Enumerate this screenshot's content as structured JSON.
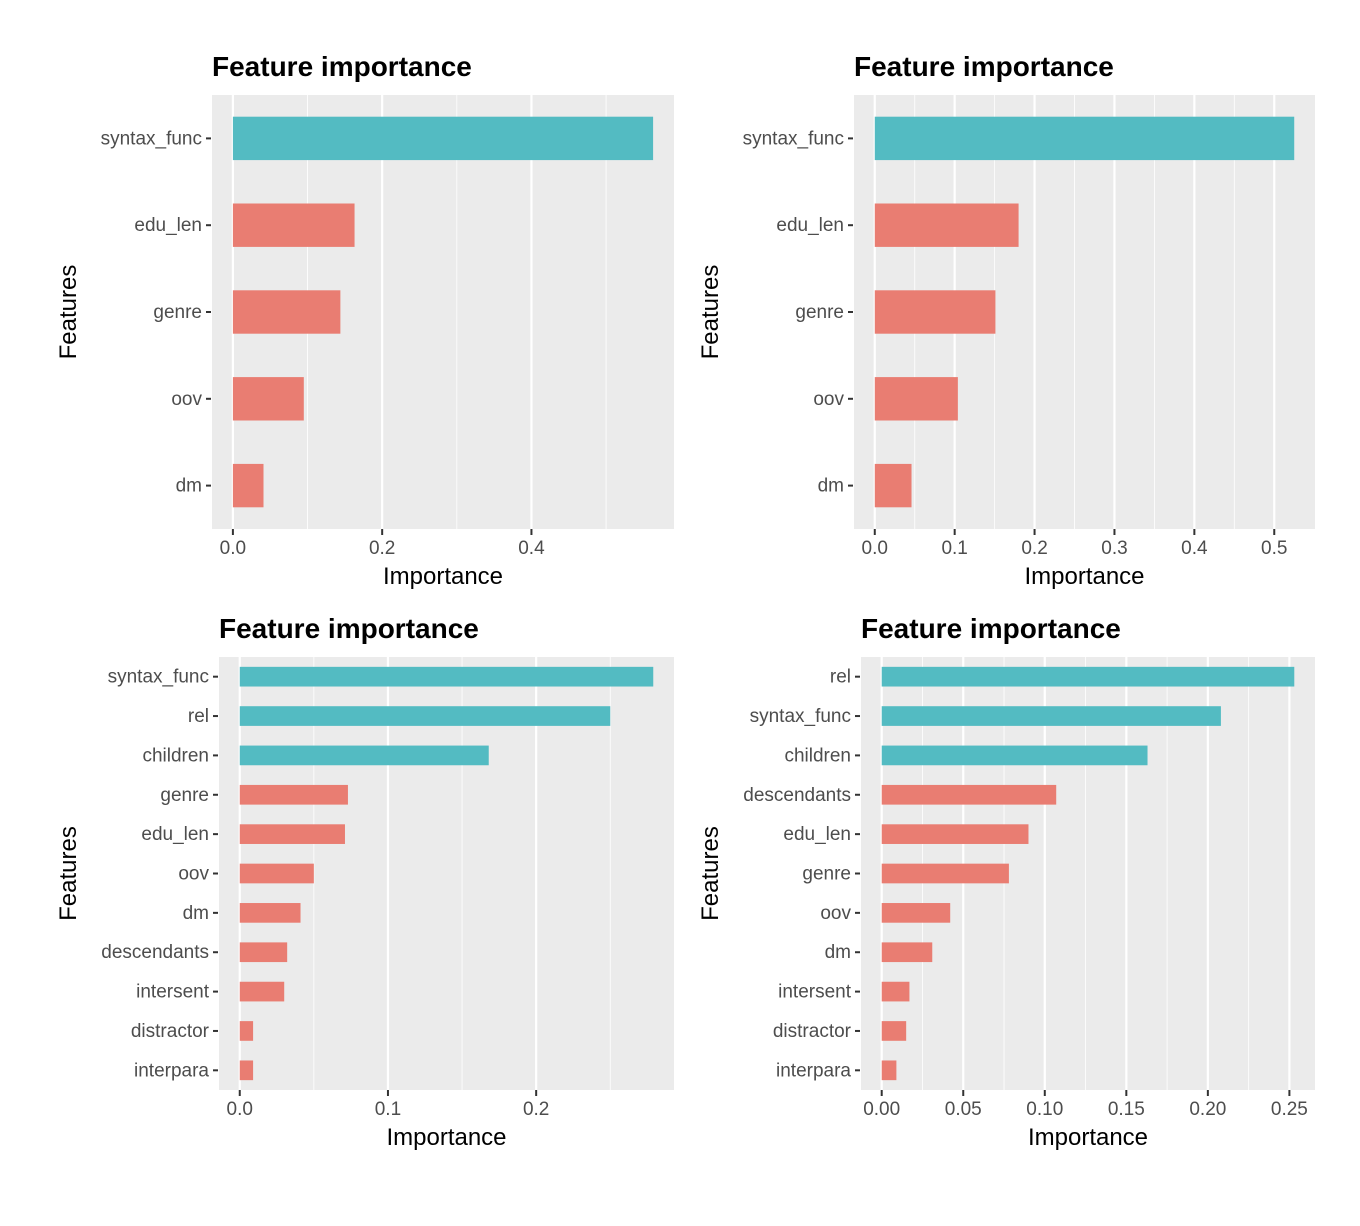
{
  "colors": {
    "top_feature": "#53BBC2",
    "other_feature": "#E97D72",
    "panel_bg": "#EBEBEB",
    "grid": "#FFFFFF",
    "text": "#4D4D4D",
    "title": "#000000"
  },
  "chart_data": [
    {
      "type": "bar",
      "orientation": "horizontal",
      "title": "Feature importance",
      "xlabel": "Importance",
      "ylabel": "Features",
      "categories": [
        "syntax_func",
        "edu_len",
        "genre",
        "oov",
        "dm"
      ],
      "values": [
        0.563,
        0.163,
        0.144,
        0.095,
        0.041
      ],
      "clusters": [
        1,
        2,
        2,
        2,
        2
      ],
      "xlim": [
        -0.028,
        0.591
      ],
      "xticks": [
        0.0,
        0.2,
        0.4
      ],
      "xtick_labels": [
        "0.0",
        "0.2",
        "0.4"
      ],
      "minor_xticks": [
        0.1,
        0.3,
        0.5
      ],
      "legend": "none",
      "grid": true
    },
    {
      "type": "bar",
      "orientation": "horizontal",
      "title": "Feature importance",
      "xlabel": "Importance",
      "ylabel": "Features",
      "categories": [
        "syntax_func",
        "edu_len",
        "genre",
        "oov",
        "dm"
      ],
      "values": [
        0.525,
        0.18,
        0.151,
        0.104,
        0.046
      ],
      "clusters": [
        1,
        2,
        2,
        2,
        2
      ],
      "xlim": [
        -0.026,
        0.551
      ],
      "xticks": [
        0.0,
        0.1,
        0.2,
        0.3,
        0.4,
        0.5
      ],
      "xtick_labels": [
        "0.0",
        "0.1",
        "0.2",
        "0.3",
        "0.4",
        "0.5"
      ],
      "minor_xticks": [
        0.05,
        0.15,
        0.25,
        0.35,
        0.45
      ],
      "legend": "none",
      "grid": true
    },
    {
      "type": "bar",
      "orientation": "horizontal",
      "title": "Feature importance",
      "xlabel": "Importance",
      "ylabel": "Features",
      "categories": [
        "syntax_func",
        "rel",
        "children",
        "genre",
        "edu_len",
        "oov",
        "dm",
        "descendants",
        "intersent",
        "distractor",
        "interpara"
      ],
      "values": [
        0.279,
        0.25,
        0.168,
        0.073,
        0.071,
        0.05,
        0.041,
        0.032,
        0.03,
        0.009,
        0.009
      ],
      "clusters": [
        1,
        1,
        1,
        2,
        2,
        2,
        2,
        2,
        2,
        2,
        2
      ],
      "xlim": [
        -0.014,
        0.293
      ],
      "xticks": [
        0.0,
        0.1,
        0.2
      ],
      "xtick_labels": [
        "0.0",
        "0.1",
        "0.2"
      ],
      "minor_xticks": [
        0.05,
        0.15,
        0.25
      ],
      "legend": "none",
      "grid": true
    },
    {
      "type": "bar",
      "orientation": "horizontal",
      "title": "Feature importance",
      "xlabel": "Importance",
      "ylabel": "Features",
      "categories": [
        "rel",
        "syntax_func",
        "children",
        "descendants",
        "edu_len",
        "genre",
        "oov",
        "dm",
        "intersent",
        "distractor",
        "interpara"
      ],
      "values": [
        0.253,
        0.208,
        0.163,
        0.107,
        0.09,
        0.078,
        0.042,
        0.031,
        0.017,
        0.015,
        0.009
      ],
      "clusters": [
        1,
        1,
        1,
        2,
        2,
        2,
        2,
        2,
        2,
        2,
        2
      ],
      "xlim": [
        -0.0127,
        0.2657
      ],
      "xticks": [
        0.0,
        0.05,
        0.1,
        0.15,
        0.2,
        0.25
      ],
      "xtick_labels": [
        "0.00",
        "0.05",
        "0.10",
        "0.15",
        "0.20",
        "0.25"
      ],
      "minor_xticks": [
        0.025,
        0.075,
        0.125,
        0.175,
        0.225
      ],
      "legend": "none",
      "grid": true
    }
  ]
}
